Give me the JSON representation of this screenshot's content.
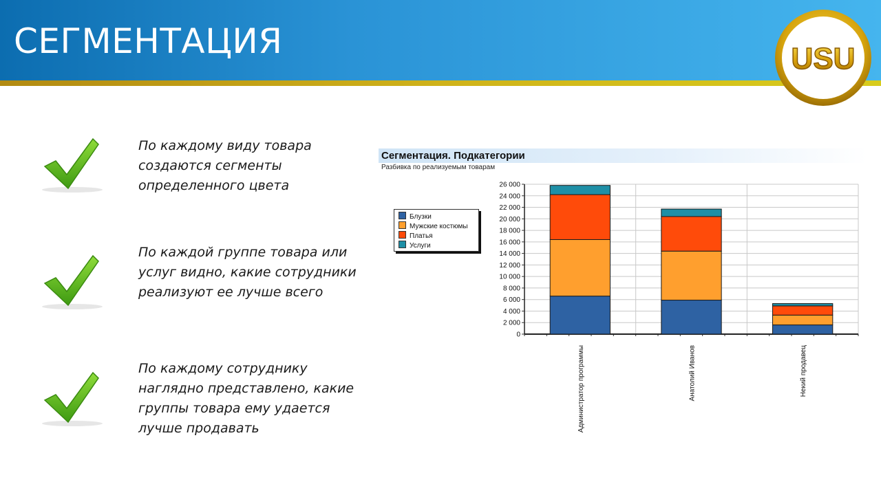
{
  "header": {
    "title": "СЕГМЕНТАЦИЯ",
    "logo_text": "USU",
    "colors": {
      "band": "#2a93d6",
      "stripe": "#cfb21a",
      "logo_gold": "#d4a60e"
    }
  },
  "bullets": [
    {
      "icon": "check-icon",
      "text": "По каждому виду товара создаются сегменты определенного цвета"
    },
    {
      "icon": "check-icon",
      "text": "По каждой группе товара или услуг видно, какие сотрудники реализуют ее лучше всего"
    },
    {
      "icon": "check-icon",
      "text": "По каждому сотруднику наглядно представлено, какие группы товара ему удается лучше продавать"
    }
  ],
  "chart_data": {
    "type": "bar",
    "stacked": true,
    "title": "Сегментация. Подкатегории",
    "subtitle": "Разбивка по реализуемым товарам",
    "categories": [
      "Администратор программы",
      "Анатолий Иванов",
      "Некий продавец"
    ],
    "series": [
      {
        "name": "Блузки",
        "color": "#2e62a3",
        "values": [
          6600,
          5900,
          1600
        ]
      },
      {
        "name": "Мужские костюмы",
        "color": "#ff9f2e",
        "values": [
          9800,
          8500,
          1700
        ]
      },
      {
        "name": "Платья",
        "color": "#ff4b0a",
        "values": [
          7800,
          6000,
          1600
        ]
      },
      {
        "name": "Услуги",
        "color": "#1e8fa6",
        "values": [
          1600,
          1300,
          400
        ]
      }
    ],
    "ylim": [
      0,
      26000
    ],
    "yticks": [
      "0",
      "2 000",
      "4 000",
      "6 000",
      "8 000",
      "10 000",
      "12 000",
      "14 000",
      "16 000",
      "18 000",
      "20 000",
      "22 000",
      "24 000",
      "26 000"
    ],
    "grid": true,
    "legend_position": "left"
  }
}
